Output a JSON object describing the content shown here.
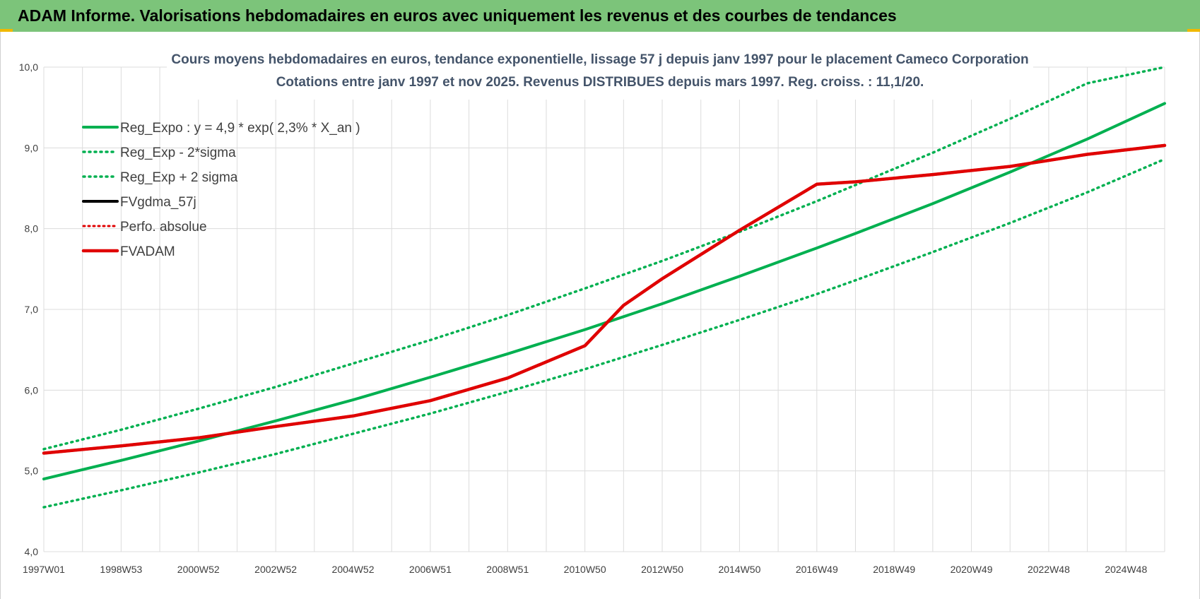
{
  "header": {
    "title": "ADAM Informe. Valorisations hebdomadaires en euros avec uniquement les revenus et des courbes de tendances"
  },
  "colors": {
    "header_bg": "#7cc47a",
    "green": "#00b050",
    "red": "#e00000",
    "black": "#000000"
  },
  "chart_data": {
    "type": "line",
    "title": "Cours moyens hebdomadaires en euros, tendance exponentielle, lissage 57 j depuis janv 1997 pour le placement Cameco Corporation",
    "subtitle": "Cotations entre janv 1997 et nov 2025. Revenus DISTRIBUES depuis mars 1997. Reg. croiss. : 11,1/20.",
    "ylim": [
      4.0,
      10.0
    ],
    "yticks": [
      "4,0",
      "5,0",
      "6,0",
      "7,0",
      "8,0",
      "9,0",
      "10,0"
    ],
    "xticks": [
      "1997W01",
      "1998W53",
      "2000W52",
      "2002W52",
      "2004W52",
      "2006W51",
      "2008W51",
      "2010W50",
      "2012W50",
      "2014W50",
      "2016W49",
      "2018W49",
      "2020W49",
      "2022W48",
      "2024W48"
    ],
    "x": [
      1997.0,
      1999.0,
      2001.0,
      2003.0,
      2005.0,
      2007.0,
      2009.0,
      2011.0,
      2012.0,
      2013.0,
      2015.0,
      2017.0,
      2018.0,
      2020.0,
      2022.0,
      2024.0,
      2026.0
    ],
    "legend_position": "top-left",
    "grid": true,
    "series": [
      {
        "name": "Reg_Expo : y = 4,9 * exp( 2,3% *  X_an )",
        "style": "solid-green",
        "values": [
          4.9,
          5.13,
          5.37,
          5.62,
          5.88,
          6.16,
          6.45,
          6.75,
          6.91,
          7.07,
          7.41,
          7.76,
          7.94,
          8.31,
          8.7,
          9.11,
          9.55
        ]
      },
      {
        "name": "Reg_Exp - 2*sigma",
        "style": "dotted-green",
        "values": [
          4.55,
          4.76,
          4.98,
          5.21,
          5.46,
          5.71,
          5.98,
          6.26,
          6.41,
          6.56,
          6.87,
          7.19,
          7.36,
          7.71,
          8.07,
          8.45,
          8.86
        ]
      },
      {
        "name": "Reg_Exp + 2 sigma",
        "style": "dotted-green",
        "values": [
          5.27,
          5.51,
          5.77,
          6.04,
          6.33,
          6.62,
          6.93,
          7.26,
          7.43,
          7.6,
          7.96,
          8.34,
          8.54,
          8.94,
          9.36,
          9.8,
          10.0
        ]
      },
      {
        "name": "FVgdma_57j",
        "style": "solid-black",
        "values": [
          5.22,
          5.31,
          5.41,
          5.55,
          5.68,
          5.87,
          6.15,
          6.55,
          7.05,
          7.38,
          7.98,
          8.55,
          8.58,
          8.67,
          8.77,
          8.92,
          9.03
        ]
      },
      {
        "name": "Perfo. absolue",
        "style": "dotted-red",
        "values": [
          5.22,
          5.31,
          5.41,
          5.55,
          5.68,
          5.87,
          6.15,
          6.55,
          7.05,
          7.38,
          7.98,
          8.55,
          8.58,
          8.67,
          8.77,
          8.92,
          9.03
        ]
      },
      {
        "name": "FVADAM",
        "style": "solid-red",
        "values": [
          5.22,
          5.31,
          5.41,
          5.55,
          5.68,
          5.87,
          6.15,
          6.55,
          7.05,
          7.38,
          7.98,
          8.55,
          8.58,
          8.67,
          8.77,
          8.92,
          9.03
        ]
      }
    ]
  }
}
